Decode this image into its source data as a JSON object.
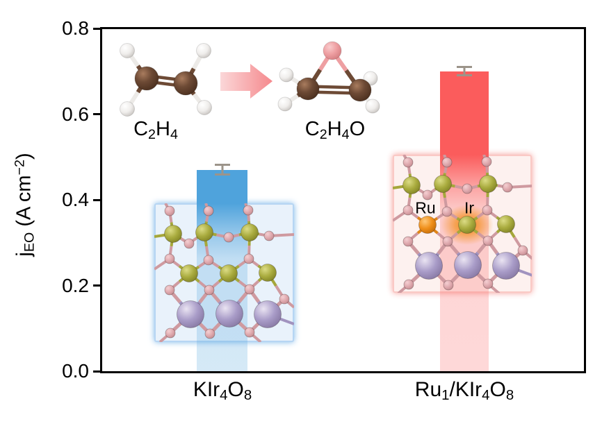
{
  "chart_data": {
    "type": "bar",
    "title": "",
    "ylabel": "j_EO (A cm^-2)",
    "ylabel_rich": [
      {
        "t": "j"
      },
      {
        "t": "EO",
        "sub": true
      },
      {
        "t": " (A cm"
      },
      {
        "t": "−2",
        "sup": true
      },
      {
        "t": ")"
      }
    ],
    "categories": [
      "KIr4O8",
      "Ru1/KIr4O8"
    ],
    "categories_rich": [
      [
        {
          "t": "KIr"
        },
        {
          "t": "4",
          "sub": true
        },
        {
          "t": "O"
        },
        {
          "t": "8",
          "sub": true
        }
      ],
      [
        {
          "t": "Ru"
        },
        {
          "t": "1",
          "sub": true
        },
        {
          "t": "/KIr"
        },
        {
          "t": "4",
          "sub": true
        },
        {
          "t": "O"
        },
        {
          "t": "8",
          "sub": true
        }
      ]
    ],
    "values": [
      0.47,
      0.7
    ],
    "errors": [
      0.014,
      0.012
    ],
    "ylim": [
      0,
      0.8
    ],
    "yticks": [
      0.0,
      0.2,
      0.4,
      0.6,
      0.8
    ],
    "grid": false,
    "legend": "none",
    "bar_colors": [
      "#4fa3dc",
      "#fb5c5c"
    ]
  },
  "annotation": {
    "reactant_formula": [
      {
        "t": "C"
      },
      {
        "t": "2",
        "sub": true
      },
      {
        "t": "H"
      },
      {
        "t": "4",
        "sub": true
      }
    ],
    "product_formula": [
      {
        "t": "C"
      },
      {
        "t": "2",
        "sub": true
      },
      {
        "t": "H"
      },
      {
        "t": "4",
        "sub": true
      },
      {
        "t": "O"
      }
    ],
    "reactant_name": "C2H4",
    "product_name": "C2H4O"
  },
  "inset_right_labels": {
    "ru": "Ru",
    "ir": "Ir"
  },
  "colors": {
    "bar_left": "#4fa3dc",
    "bar_right": "#fb5c5c",
    "error_bar": "#9c948a",
    "axis": "#000000",
    "atom_carbon": "#6d4a35",
    "atom_hydrogen": "#efedeb",
    "atom_oxygen_molecule": "#ee9fa2",
    "atom_oxygen_lattice": "#dfa9ae",
    "atom_iridium": "#a9ab3e",
    "atom_potassium": "#a99cc8",
    "atom_ruthenium": "#ef8f1a",
    "ru_site_glow": "#f38c14",
    "arrow_light": "#fbd7d8",
    "arrow_dark": "#f5898d",
    "inset_left_border": "#8cbeec",
    "inset_right_border": "#f7a8a2"
  }
}
